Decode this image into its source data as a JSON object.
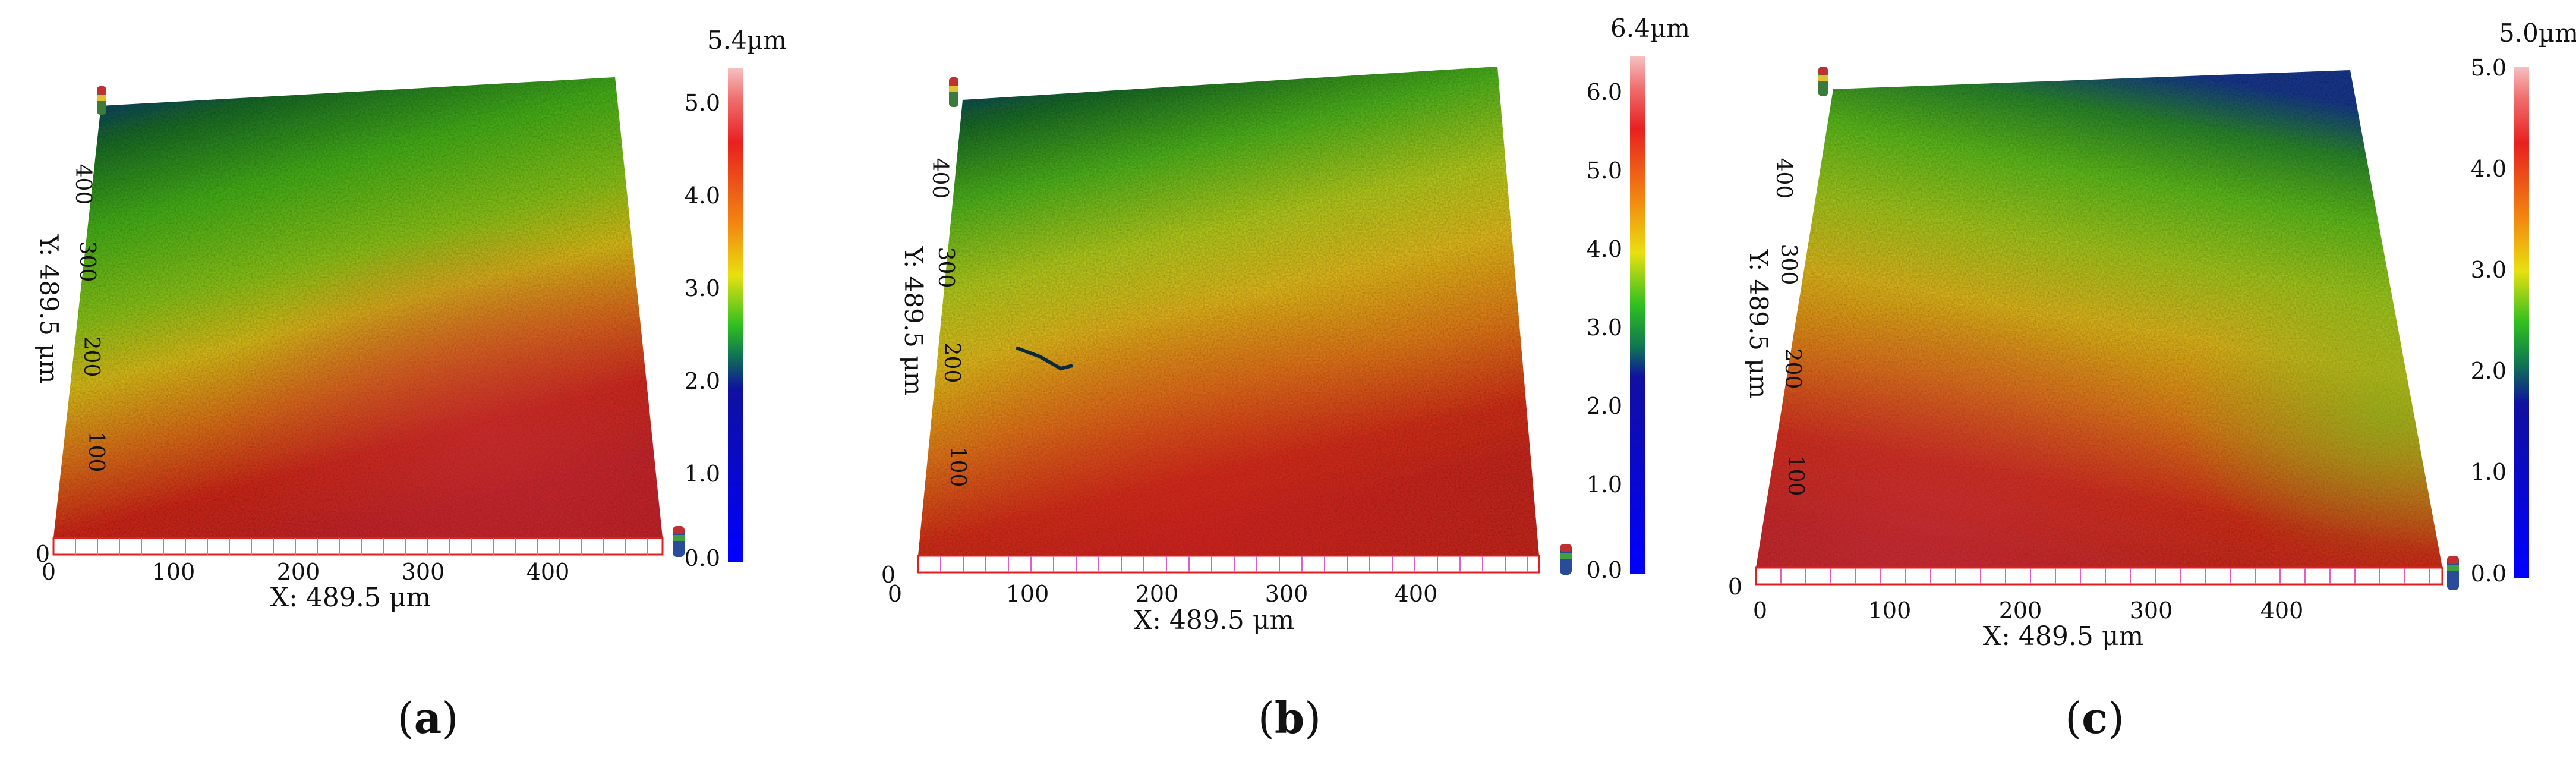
{
  "panels": [
    {
      "id": "a",
      "caption_letter": "a",
      "scale_max_label": "5.4µm",
      "scale_ticks": [
        "5.0",
        "4.0",
        "3.0",
        "2.0",
        "1.0",
        "0.0"
      ],
      "x_axis_label": "X: 489.5 μm",
      "y_axis_label": "Y: 489.5 μm",
      "x_ticks": [
        "0",
        "100",
        "200",
        "300",
        "400"
      ],
      "y_ticks": [
        "100",
        "200",
        "300",
        "400"
      ]
    },
    {
      "id": "b",
      "caption_letter": "b",
      "scale_max_label": "6.4µm",
      "scale_ticks": [
        "6.0",
        "5.0",
        "4.0",
        "3.0",
        "2.0",
        "1.0",
        "0.0"
      ],
      "x_axis_label": "X: 489.5 μm",
      "y_axis_label": "Y: 489.5 μm",
      "x_ticks": [
        "0",
        "100",
        "200",
        "300",
        "400"
      ],
      "y_ticks": [
        "100",
        "200",
        "300",
        "400"
      ]
    },
    {
      "id": "c",
      "caption_letter": "c",
      "scale_max_label": "5.0µm",
      "scale_ticks": [
        "5.0",
        "4.0",
        "3.0",
        "2.0",
        "1.0",
        "0.0"
      ],
      "x_axis_label": "X: 489.5 μm",
      "y_axis_label": "Y: 489.5 μm",
      "x_ticks": [
        "0",
        "100",
        "200",
        "300",
        "400"
      ],
      "y_ticks": [
        "100",
        "200",
        "300",
        "400"
      ]
    }
  ],
  "colors": {
    "surface_high": "#d42a1c",
    "surface_mid_high": "#e8a020",
    "surface_mid": "#d8d420",
    "surface_mid_low": "#5cc21e",
    "surface_low": "#0c2e8a",
    "scale_top": "#f6a7a7",
    "scale_bottom": "#0000ff",
    "grid_pink": "#e060c0",
    "grid_red": "#e02020"
  }
}
